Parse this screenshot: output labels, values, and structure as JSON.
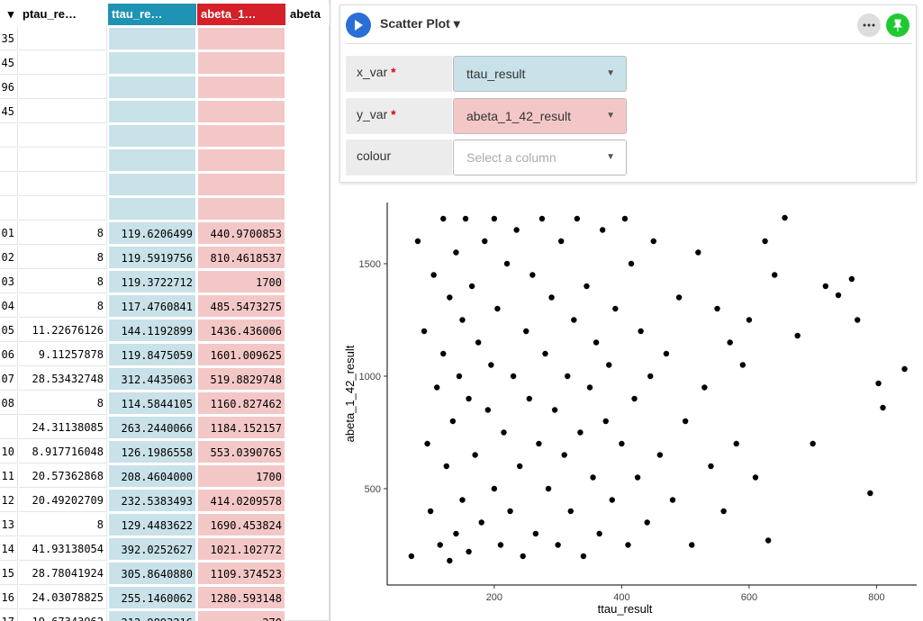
{
  "table": {
    "headers": [
      "ptau_re…",
      "ttau_re…",
      "abeta_1…",
      "abeta"
    ],
    "rows": [
      [
        "35",
        "",
        "",
        ""
      ],
      [
        "45",
        "",
        "",
        ""
      ],
      [
        "96",
        "",
        "",
        ""
      ],
      [
        "45",
        "",
        "",
        ""
      ],
      [
        "",
        "",
        "",
        ""
      ],
      [
        "",
        "",
        "",
        ""
      ],
      [
        "",
        "",
        "",
        ""
      ],
      [
        "",
        "",
        "",
        ""
      ],
      [
        "01",
        "8",
        "119.6206499",
        "440.9700853"
      ],
      [
        "02",
        "8",
        "119.5919756",
        "810.4618537"
      ],
      [
        "03",
        "8",
        "119.3722712",
        "1700"
      ],
      [
        "04",
        "8",
        "117.4760841",
        "485.5473275"
      ],
      [
        "05",
        "11.22676126",
        "144.1192899",
        "1436.436006"
      ],
      [
        "06",
        "9.11257878",
        "119.8475059",
        "1601.009625"
      ],
      [
        "07",
        "28.53432748",
        "312.4435063",
        "519.8829748"
      ],
      [
        "08",
        "8",
        "114.5844105",
        "1160.827462"
      ],
      [
        "",
        "24.31138085",
        "263.2440066",
        "1184.152157"
      ],
      [
        "10",
        "8.917716048",
        "126.1986558",
        "553.0390765"
      ],
      [
        "11",
        "20.57362868",
        "208.4604000",
        "1700"
      ],
      [
        "12",
        "20.49202709",
        "232.5383493",
        "414.0209578"
      ],
      [
        "13",
        "8",
        "129.4483622",
        "1690.453824"
      ],
      [
        "14",
        "41.93138054",
        "392.0252627",
        "1021.102772"
      ],
      [
        "15",
        "28.78041924",
        "305.8640880",
        "1109.374523"
      ],
      [
        "16",
        "24.03078825",
        "255.1460062",
        "1280.593148"
      ],
      [
        "17",
        "19.67343962",
        "212.9893216",
        "270"
      ]
    ]
  },
  "panel": {
    "title": "Scatter Plot",
    "fields": [
      {
        "label": "x_var",
        "value": "ttau_result"
      },
      {
        "label": "y_var",
        "value": "abeta_1_42_result"
      },
      {
        "label": "colour",
        "placeholder": "Select a column"
      }
    ]
  },
  "chart_data": {
    "type": "scatter",
    "x_label": "ttau_result",
    "y_label": "abeta_1_42_result",
    "color": "#000000",
    "xlim": [
      32,
      863
    ],
    "ylim": [
      72,
      1772
    ],
    "xticks": [
      200,
      400,
      600,
      800
    ],
    "yticks": [
      500,
      1000,
      1500
    ],
    "x": [
      70,
      80,
      90,
      95,
      100,
      105,
      110,
      115,
      120,
      120,
      125,
      130,
      130,
      135,
      140,
      140,
      145,
      150,
      150,
      155,
      160,
      160,
      165,
      170,
      175,
      180,
      185,
      190,
      195,
      200,
      200,
      205,
      210,
      215,
      220,
      225,
      230,
      235,
      240,
      245,
      250,
      255,
      260,
      265,
      270,
      275,
      280,
      285,
      290,
      295,
      300,
      305,
      310,
      315,
      320,
      325,
      330,
      335,
      340,
      345,
      350,
      355,
      360,
      365,
      370,
      375,
      380,
      385,
      390,
      400,
      405,
      410,
      415,
      420,
      425,
      430,
      440,
      445,
      450,
      460,
      470,
      480,
      490,
      500,
      510,
      520,
      530,
      540,
      550,
      560,
      570,
      580,
      590,
      600,
      610,
      625,
      630,
      640,
      656,
      676,
      700,
      720,
      740,
      761,
      770,
      790,
      810,
      844,
      803
    ],
    "y": [
      200,
      1600,
      1200,
      700,
      400,
      1450,
      950,
      250,
      1700,
      1100,
      600,
      1350,
      180,
      800,
      1550,
      300,
      1000,
      450,
      1250,
      1700,
      900,
      220,
      1400,
      650,
      1150,
      350,
      1600,
      850,
      1050,
      500,
      1700,
      1300,
      250,
      750,
      1500,
      400,
      1000,
      1650,
      600,
      200,
      1200,
      900,
      1450,
      300,
      700,
      1700,
      1100,
      500,
      1350,
      850,
      250,
      1600,
      650,
      1000,
      400,
      1250,
      1700,
      750,
      200,
      1400,
      950,
      550,
      1150,
      300,
      1650,
      800,
      1050,
      450,
      1300,
      700,
      1700,
      250,
      1500,
      900,
      550,
      1200,
      350,
      1000,
      1600,
      650,
      1100,
      450,
      1350,
      800,
      250,
      1550,
      950,
      600,
      1300,
      400,
      1150,
      700,
      1050,
      1250,
      550,
      1600,
      270,
      1450,
      1704,
      1180,
      700,
      1400,
      1360,
      1432,
      1250,
      480,
      860,
      1032,
      968
    ]
  }
}
